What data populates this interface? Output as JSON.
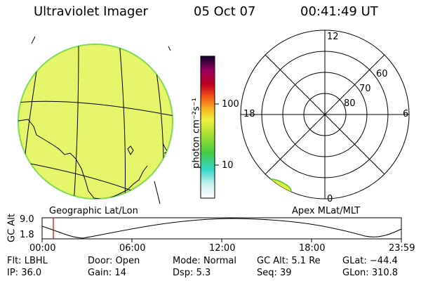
{
  "header": {
    "instrument": "Ultraviolet Imager",
    "date": "05 Oct 07",
    "time": "00:41:49 UT"
  },
  "colorbar": {
    "unit_label": "photon cm⁻²s⁻¹",
    "tick_100": "100",
    "tick_10": "10"
  },
  "left_panel": {
    "caption": "Geographic Lat/Lon"
  },
  "right_panel": {
    "caption": "Apex MLat/MLT",
    "mlt_12": "12",
    "mlt_18": "18",
    "mlt_6": "6",
    "mlt_0": "0",
    "lat_60": "60",
    "lat_70": "70",
    "lat_80": "80"
  },
  "alt_plot": {
    "ylabel": "GC Alt",
    "ymax": "9.0",
    "ymin": "1.8",
    "ticks": [
      "00:00",
      "06:00",
      "12:00",
      "18:00",
      "23:59"
    ],
    "cursor_color": "#cc0000"
  },
  "status": {
    "flt_label": "Flt:",
    "flt_value": "LBHL",
    "door_label": "Door:",
    "door_value": "Open",
    "mode_label": "Mode:",
    "mode_value": "Normal",
    "gcalt_label": "GC Alt:",
    "gcalt_value": "5.1 Re",
    "glat_label": "GLat:",
    "glat_value": "−44.4",
    "ip_label": "IP:",
    "ip_value": "36.0",
    "gain_label": "Gain:",
    "gain_value": "14",
    "dsp_label": "Dsp:",
    "dsp_value": "5.3",
    "seq_label": "Seq:",
    "seq_value": "39",
    "glon_label": "GLon:",
    "glon_value": "310.8"
  },
  "colors": {
    "disk_fill": "#e6f56a",
    "disk_edge": "#7fdc50",
    "oval_fill": "#d8ef3c"
  }
}
